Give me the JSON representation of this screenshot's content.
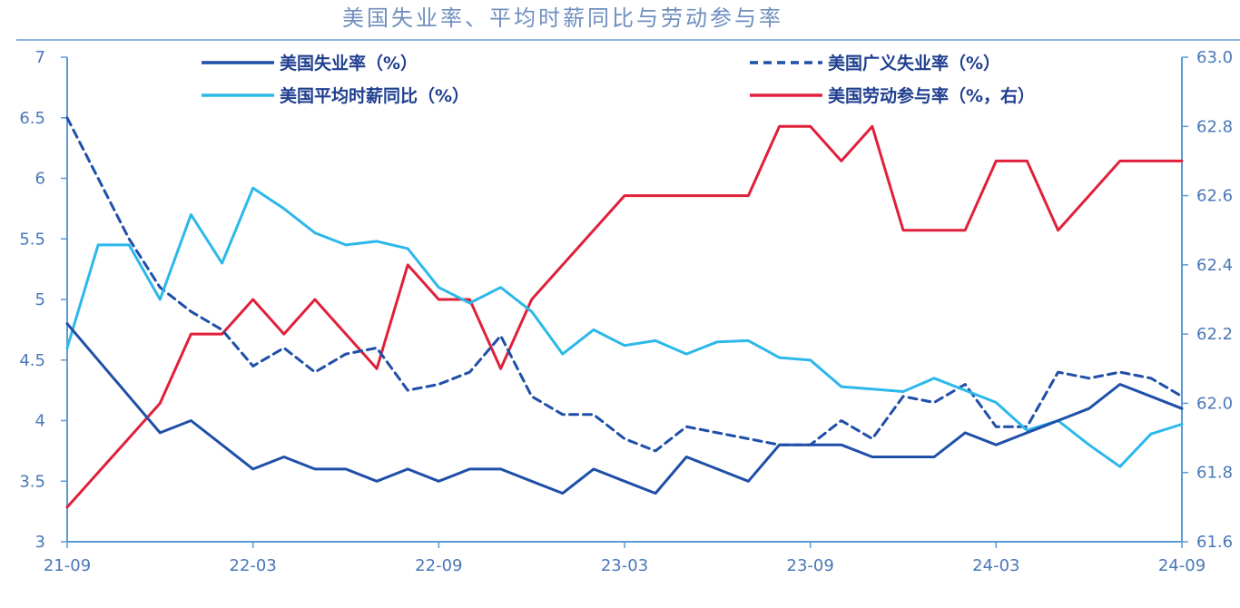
{
  "chart_data": {
    "type": "line",
    "title": "美国失业率、平均时薪同比与劳动参与率",
    "x": [
      "21-09",
      "21-10",
      "21-11",
      "21-12",
      "22-01",
      "22-02",
      "22-03",
      "22-04",
      "22-05",
      "22-06",
      "22-07",
      "22-08",
      "22-09",
      "22-10",
      "22-11",
      "22-12",
      "23-01",
      "23-02",
      "23-03",
      "23-04",
      "23-05",
      "23-06",
      "23-07",
      "23-08",
      "23-09",
      "23-10",
      "23-11",
      "23-12",
      "24-01",
      "24-02",
      "24-03",
      "24-04",
      "24-05",
      "24-06",
      "24-07",
      "24-08",
      "24-09"
    ],
    "x_tick_labels": [
      "21-09",
      "22-03",
      "22-09",
      "23-03",
      "23-09",
      "24-03",
      "24-09"
    ],
    "y_left": {
      "ylim": [
        3,
        7
      ],
      "ticks": [
        "3",
        "3.5",
        "4",
        "4.5",
        "5",
        "5.5",
        "6",
        "6.5",
        "7"
      ]
    },
    "y_right": {
      "ylim": [
        61.6,
        63.0
      ],
      "ticks": [
        "61.6",
        "61.8",
        "62.0",
        "62.2",
        "62.4",
        "62.6",
        "62.8",
        "63.0"
      ]
    },
    "legend": "top",
    "grid": false,
    "series": [
      {
        "name": "美国失业率（%）",
        "axis": "left",
        "color": "#1f4fa8",
        "style": "solid",
        "values": [
          4.8,
          4.5,
          4.2,
          3.9,
          4.0,
          3.8,
          3.6,
          3.7,
          3.6,
          3.6,
          3.5,
          3.6,
          3.5,
          3.6,
          3.6,
          3.5,
          3.4,
          3.6,
          3.5,
          3.4,
          3.7,
          3.6,
          3.5,
          3.8,
          3.8,
          3.8,
          3.7,
          3.7,
          3.7,
          3.9,
          3.8,
          3.9,
          4.0,
          4.1,
          4.3,
          4.2,
          4.1
        ]
      },
      {
        "name": "美国广义失业率（%）",
        "axis": "left",
        "color": "#1f4fa8",
        "style": "dashed",
        "values": [
          6.5,
          6.0,
          5.5,
          5.1,
          4.9,
          4.75,
          4.45,
          4.6,
          4.4,
          4.55,
          4.6,
          4.25,
          4.3,
          4.4,
          4.7,
          4.2,
          4.05,
          4.05,
          3.85,
          3.75,
          3.95,
          3.9,
          3.85,
          3.8,
          3.8,
          4.0,
          3.85,
          4.2,
          4.15,
          4.3,
          3.95,
          3.95,
          4.4,
          4.35,
          4.4,
          4.35,
          4.2
        ]
      },
      {
        "name": "美国平均时薪同比（%）",
        "axis": "left",
        "color": "#2cb8ea",
        "style": "solid",
        "values": [
          4.6,
          5.45,
          5.45,
          5.0,
          5.7,
          5.3,
          5.92,
          5.75,
          5.55,
          5.45,
          5.48,
          5.42,
          5.1,
          4.97,
          5.1,
          4.9,
          4.55,
          4.75,
          4.62,
          4.66,
          4.55,
          4.65,
          4.66,
          4.52,
          4.5,
          4.28,
          4.26,
          4.24,
          4.35,
          4.25,
          4.15,
          3.92,
          4.0,
          3.8,
          3.62,
          3.89,
          3.97
        ]
      },
      {
        "name": "美国劳动参与率（%，右）",
        "axis": "right",
        "color": "#e0203a",
        "style": "solid",
        "values": [
          61.7,
          61.8,
          61.9,
          62.0,
          62.2,
          62.2,
          62.3,
          62.2,
          62.3,
          62.2,
          62.1,
          62.4,
          62.3,
          62.3,
          62.1,
          62.3,
          62.4,
          62.5,
          62.6,
          62.6,
          62.6,
          62.6,
          62.6,
          62.8,
          62.8,
          62.7,
          62.8,
          62.5,
          62.5,
          62.5,
          62.7,
          62.7,
          62.5,
          62.6,
          62.7,
          62.7,
          62.7
        ]
      }
    ]
  }
}
